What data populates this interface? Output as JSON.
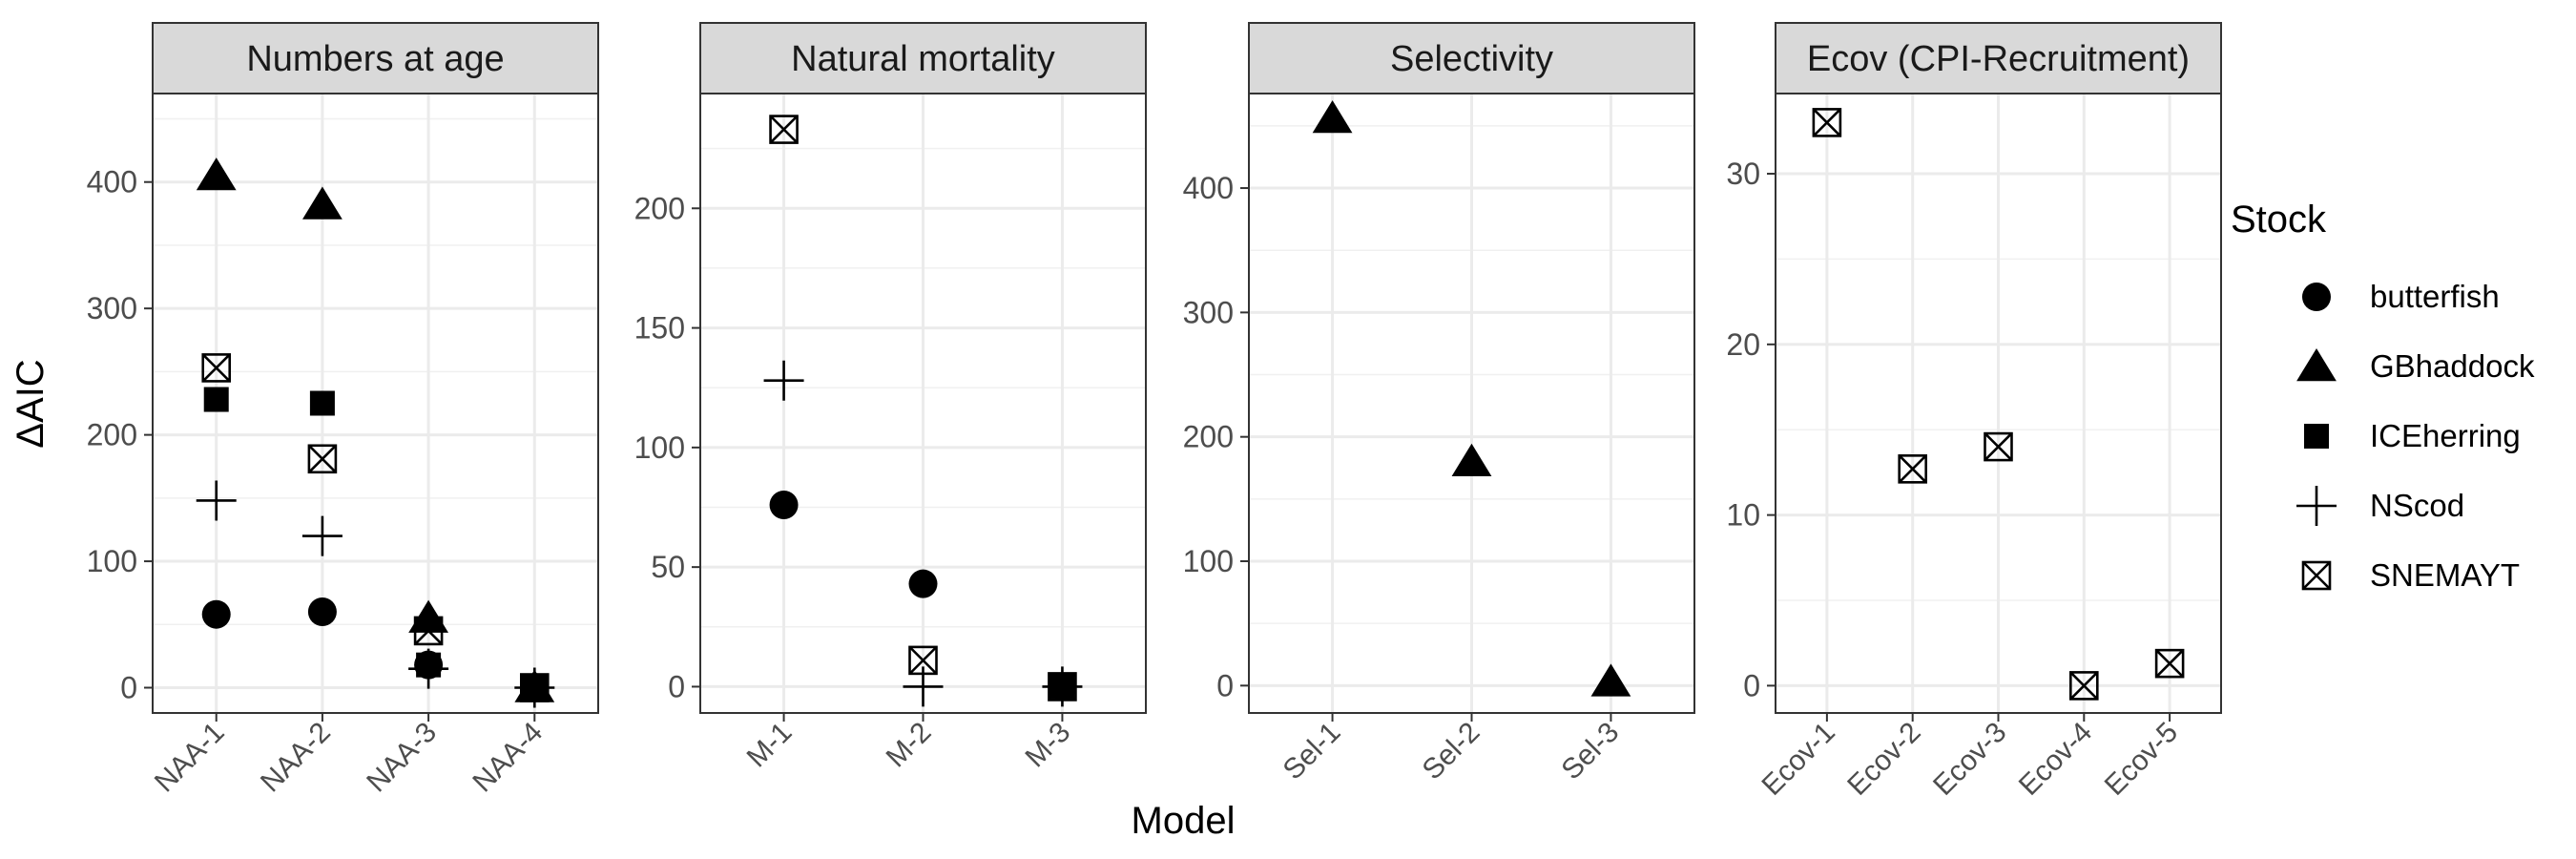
{
  "chart_data": {
    "type": "scatter",
    "ylabel": "ΔAIC",
    "xlabel": "Model",
    "legend": {
      "title": "Stock",
      "placement": "right",
      "entries": [
        {
          "name": "butterfish",
          "shape": "circle"
        },
        {
          "name": "GBhaddock",
          "shape": "triangle"
        },
        {
          "name": "ICEherring",
          "shape": "square"
        },
        {
          "name": "NScod",
          "shape": "plus"
        },
        {
          "name": "SNEMAYT",
          "shape": "boxed-x"
        }
      ]
    },
    "grid": true,
    "panels": [
      {
        "title": "Numbers at age",
        "categories": [
          "NAA-1",
          "NAA-2",
          "NAA-3",
          "NAA-4"
        ],
        "ylim": [
          -20,
          470
        ],
        "yticks": [
          0,
          100,
          200,
          300,
          400
        ],
        "series": [
          {
            "name": "butterfish",
            "values": [
              58,
              60,
              18,
              0
            ]
          },
          {
            "name": "GBhaddock",
            "values": [
              405,
              382,
              55,
              0
            ]
          },
          {
            "name": "ICEherring",
            "values": [
              228,
              225,
              18,
              0
            ]
          },
          {
            "name": "NScod",
            "values": [
              148,
              120,
              15,
              0
            ]
          },
          {
            "name": "SNEMAYT",
            "values": [
              253,
              181,
              45,
              0
            ]
          }
        ]
      },
      {
        "title": "Natural mortality",
        "categories": [
          "M-1",
          "M-2",
          "M-3"
        ],
        "ylim": [
          -11,
          248
        ],
        "yticks": [
          0,
          50,
          100,
          150,
          200
        ],
        "series": [
          {
            "name": "butterfish",
            "values": [
              76,
              43,
              0
            ]
          },
          {
            "name": "GBhaddock",
            "values": [
              null,
              null,
              null
            ]
          },
          {
            "name": "ICEherring",
            "values": [
              null,
              null,
              0
            ]
          },
          {
            "name": "NScod",
            "values": [
              128,
              0,
              0
            ]
          },
          {
            "name": "SNEMAYT",
            "values": [
              233,
              11,
              0
            ]
          }
        ]
      },
      {
        "title": "Selectivity",
        "categories": [
          "Sel-1",
          "Sel-2",
          "Sel-3"
        ],
        "ylim": [
          -22,
          476
        ],
        "yticks": [
          0,
          100,
          200,
          300,
          400
        ],
        "series": [
          {
            "name": "butterfish",
            "values": [
              null,
              null,
              null
            ]
          },
          {
            "name": "GBhaddock",
            "values": [
              456,
              180,
              3
            ]
          },
          {
            "name": "ICEherring",
            "values": [
              null,
              null,
              null
            ]
          },
          {
            "name": "NScod",
            "values": [
              null,
              null,
              null
            ]
          },
          {
            "name": "SNEMAYT",
            "values": [
              null,
              null,
              null
            ]
          }
        ]
      },
      {
        "title": "Ecov (CPI-Recruitment)",
        "categories": [
          "Ecov-1",
          "Ecov-2",
          "Ecov-3",
          "Ecov-4",
          "Ecov-5"
        ],
        "ylim": [
          -1.6,
          34.7
        ],
        "yticks": [
          0,
          10,
          20,
          30
        ],
        "series": [
          {
            "name": "butterfish",
            "values": [
              null,
              null,
              null,
              null,
              null
            ]
          },
          {
            "name": "GBhaddock",
            "values": [
              null,
              null,
              null,
              null,
              null
            ]
          },
          {
            "name": "ICEherring",
            "values": [
              null,
              null,
              null,
              null,
              null
            ]
          },
          {
            "name": "NScod",
            "values": [
              null,
              null,
              null,
              null,
              null
            ]
          },
          {
            "name": "SNEMAYT",
            "values": [
              33,
              12.7,
              14,
              0,
              1.3
            ]
          }
        ]
      }
    ]
  }
}
